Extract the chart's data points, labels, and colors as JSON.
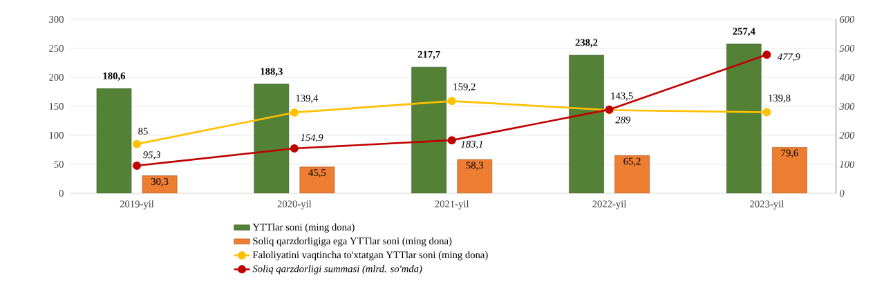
{
  "chart_data": {
    "type": "bar",
    "categories": [
      "2019-yil",
      "2020-yil",
      "2021-yil",
      "2022-yil",
      "2023-yil"
    ],
    "series": [
      {
        "name": "YTTlar soni (ming dona)",
        "color": "#538135",
        "values": [
          180.6,
          188.3,
          217.7,
          238.2,
          257.4
        ],
        "value_labels": [
          "180,6",
          "188,3",
          "217,7",
          "238,2",
          "257,4"
        ]
      },
      {
        "name": "Soliq qarzdorligiga ega YTTlar soni (ming dona)",
        "color": "#ed7d31",
        "values": [
          30.3,
          45.5,
          58.3,
          65.2,
          79.6
        ],
        "value_labels": [
          "30,3",
          "45,5",
          "58,3",
          "65,2",
          "79,6"
        ]
      },
      {
        "name": "Faloliyatini vaqtincha to'xtatgan YTTlar soni (ming dona)",
        "type": "line",
        "color": "#ffc000",
        "values": [
          85,
          139.4,
          159.2,
          143.5,
          139.8
        ],
        "value_labels": [
          "85",
          "139,4",
          "159,2",
          "143,5",
          "139,8"
        ]
      },
      {
        "name": "Soliq qarzdorligi summasi (mlrd. so'mda)",
        "type": "line",
        "axis": "y2",
        "color": "#c00000",
        "values": [
          95.3,
          154.9,
          183.1,
          289,
          477.9
        ],
        "value_labels": [
          "95,3",
          "154,9",
          "183,1",
          "289",
          "477,9"
        ]
      }
    ],
    "ylim": [
      0,
      300
    ],
    "yticks": [
      0,
      50,
      100,
      150,
      200,
      250,
      300
    ],
    "y2lim": [
      0,
      600
    ],
    "y2ticks": [
      0,
      100,
      200,
      300,
      400,
      500,
      600
    ],
    "grid": "y",
    "legend": "bottom",
    "marker": "circle",
    "line_style": "solid"
  }
}
